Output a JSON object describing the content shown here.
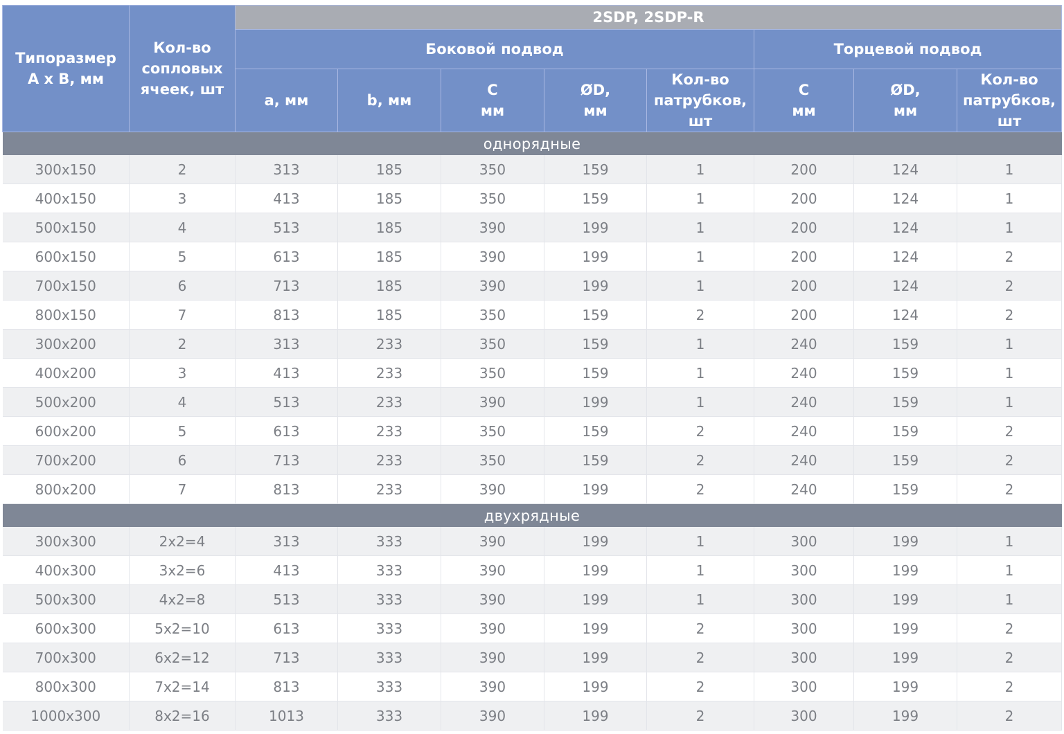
{
  "header": {
    "model": "2SDP, 2SDP-R",
    "col_size": "Типоразмер\nA x B, мм",
    "col_cells": "Кол-во\nсопловых\nячеек, шт",
    "side": {
      "title": "Боковой подвод",
      "a": "a, мм",
      "b": "b, мм",
      "c": "C\nмм",
      "d": "ØD,\nмм",
      "n": "Кол-во\nпатрубков,\nшт"
    },
    "end": {
      "title": "Торцевой подвод",
      "c": "C\nмм",
      "d": "ØD,\nмм",
      "n": "Кол-во\nпатрубков,\nшт"
    }
  },
  "sections": [
    {
      "title": "однорядные",
      "rows": [
        [
          "300x150",
          "2",
          "313",
          "185",
          "350",
          "159",
          "1",
          "200",
          "124",
          "1"
        ],
        [
          "400x150",
          "3",
          "413",
          "185",
          "350",
          "159",
          "1",
          "200",
          "124",
          "1"
        ],
        [
          "500x150",
          "4",
          "513",
          "185",
          "390",
          "199",
          "1",
          "200",
          "124",
          "1"
        ],
        [
          "600x150",
          "5",
          "613",
          "185",
          "390",
          "199",
          "1",
          "200",
          "124",
          "2"
        ],
        [
          "700x150",
          "6",
          "713",
          "185",
          "390",
          "199",
          "1",
          "200",
          "124",
          "2"
        ],
        [
          "800x150",
          "7",
          "813",
          "185",
          "350",
          "159",
          "2",
          "200",
          "124",
          "2"
        ],
        [
          "300x200",
          "2",
          "313",
          "233",
          "350",
          "159",
          "1",
          "240",
          "159",
          "1"
        ],
        [
          "400x200",
          "3",
          "413",
          "233",
          "350",
          "159",
          "1",
          "240",
          "159",
          "1"
        ],
        [
          "500x200",
          "4",
          "513",
          "233",
          "390",
          "199",
          "1",
          "240",
          "159",
          "1"
        ],
        [
          "600x200",
          "5",
          "613",
          "233",
          "350",
          "159",
          "2",
          "240",
          "159",
          "2"
        ],
        [
          "700x200",
          "6",
          "713",
          "233",
          "350",
          "159",
          "2",
          "240",
          "159",
          "2"
        ],
        [
          "800x200",
          "7",
          "813",
          "233",
          "390",
          "199",
          "2",
          "240",
          "159",
          "2"
        ]
      ]
    },
    {
      "title": "двухрядные",
      "rows": [
        [
          "300x300",
          "2x2=4",
          "313",
          "333",
          "390",
          "199",
          "1",
          "300",
          "199",
          "1"
        ],
        [
          "400x300",
          "3x2=6",
          "413",
          "333",
          "390",
          "199",
          "1",
          "300",
          "199",
          "1"
        ],
        [
          "500x300",
          "4x2=8",
          "513",
          "333",
          "390",
          "199",
          "1",
          "300",
          "199",
          "1"
        ],
        [
          "600x300",
          "5x2=10",
          "613",
          "333",
          "390",
          "199",
          "2",
          "300",
          "199",
          "2"
        ],
        [
          "700x300",
          "6x2=12",
          "713",
          "333",
          "390",
          "199",
          "2",
          "300",
          "199",
          "2"
        ],
        [
          "800x300",
          "7x2=14",
          "813",
          "333",
          "390",
          "199",
          "2",
          "300",
          "199",
          "2"
        ],
        [
          "1000x300",
          "8x2=16",
          "1013",
          "333",
          "390",
          "199",
          "2",
          "300",
          "199",
          "2"
        ]
      ]
    }
  ]
}
